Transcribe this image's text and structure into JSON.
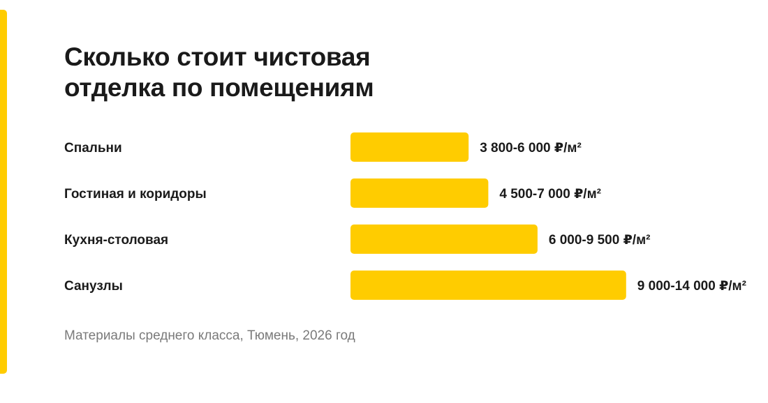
{
  "title_lines": [
    "Сколько стоит чистовая",
    "отделка по помещениям"
  ],
  "footnote": "Материалы среднего класса, Тюмень, 2026 год",
  "colors": {
    "accent": "#ffcc00",
    "bar": "#ffcc00",
    "text": "#1a1a1a",
    "muted": "#7a7a7a"
  },
  "chart_data": {
    "type": "bar",
    "orientation": "horizontal",
    "categories": [
      "Спальни",
      "Гостиная и коридоры",
      "Кухня-столовая",
      "Санузлы"
    ],
    "values": [
      6000,
      7000,
      9500,
      14000
    ],
    "ranges": [
      [
        3800,
        6000
      ],
      [
        4500,
        7000
      ],
      [
        6000,
        9500
      ],
      [
        9000,
        14000
      ]
    ],
    "data_labels": [
      "3 800-6 000 ₽/м²",
      "4 500-7 000 ₽/м²",
      "6 000-9 500 ₽/м²",
      "9 000-14 000 ₽/м²"
    ],
    "grid": false,
    "legend": "none"
  }
}
